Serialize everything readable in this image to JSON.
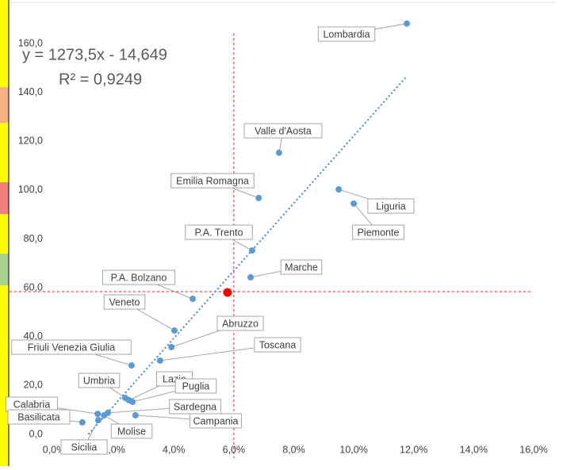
{
  "chart_data": {
    "type": "scatter",
    "annotations": [
      "y = 1273,5x - 14,649",
      "R² = 0,9249"
    ],
    "xlim": [
      0,
      16
    ],
    "ylim": [
      0,
      160
    ],
    "xticks": [
      {
        "value": 0,
        "label": "0,0%"
      },
      {
        "value": 2,
        "label": "2,0%"
      },
      {
        "value": 4,
        "label": "4,0%"
      },
      {
        "value": 6,
        "label": "6,0%"
      },
      {
        "value": 8,
        "label": "8,0%"
      },
      {
        "value": 10,
        "label": "10,0%"
      },
      {
        "value": 12,
        "label": "12,0%"
      },
      {
        "value": 14,
        "label": "14,0%"
      },
      {
        "value": 16,
        "label": "16,0%"
      }
    ],
    "yticks": [
      {
        "value": 0,
        "label": "0,0"
      },
      {
        "value": 20,
        "label": "20,0"
      },
      {
        "value": 40,
        "label": "40,0"
      },
      {
        "value": 60,
        "label": "60,0"
      },
      {
        "value": 80,
        "label": "80,0"
      },
      {
        "value": 100,
        "label": "100,0"
      },
      {
        "value": 120,
        "label": "120,0"
      },
      {
        "value": 140,
        "label": "140,0"
      },
      {
        "value": 160,
        "label": "160,0"
      }
    ],
    "grid": false,
    "series": [
      {
        "color": "#5b9bd5",
        "point_labels": [
          "Lombardia",
          "Valle d'Aosta",
          "Emilia Romagna",
          "Liguria",
          "Piemonte",
          "P.A. Trento",
          "Marche",
          "P.A. Bolzano",
          "Veneto",
          "Abruzzo",
          "Toscana",
          "Friuli Venezia Giulia",
          "Umbria",
          "Lazio",
          "Puglia",
          "Sardegna",
          "Campania",
          "Calabria",
          "Basilicata",
          "Molise",
          "Sicilia"
        ],
        "x": [
          11.77,
          7.51,
          6.83,
          9.5,
          10.0,
          6.61,
          6.56,
          4.63,
          4.02,
          3.92,
          3.54,
          2.59,
          2.38,
          2.5,
          2.62,
          1.8,
          2.72,
          1.46,
          0.95,
          1.67,
          1.48
        ],
        "values": [
          168.2,
          115.3,
          96.8,
          100.3,
          94.5,
          75.3,
          64.3,
          55.5,
          42.5,
          35.7,
          30.2,
          28.2,
          14.9,
          14.0,
          13.3,
          8.8,
          7.8,
          8.4,
          4.9,
          7.8,
          5.8
        ]
      },
      {
        "color": "#ff0000",
        "x": [
          5.79
        ],
        "values": [
          58.1
        ]
      }
    ],
    "trendline": {
      "color": "#4a86c8",
      "x": [
        1.15,
        11.75
      ],
      "values": [
        0,
        146.4
      ]
    },
    "reference_lines": {
      "color": "#e02020",
      "x": 6.0,
      "y": 58.4
    }
  }
}
